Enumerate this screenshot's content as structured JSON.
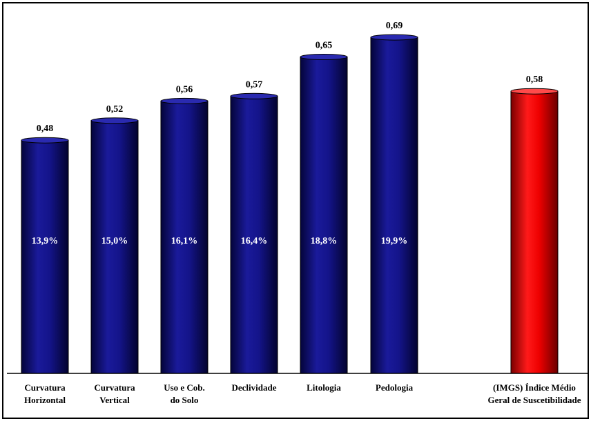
{
  "chart_data": {
    "type": "bar",
    "categories": [
      [
        "Curvatura",
        "Horizontal"
      ],
      [
        "Curvatura",
        "Vertical"
      ],
      [
        "Uso e Cob.",
        "do Solo"
      ],
      [
        "Declividade"
      ],
      [
        "Litologia"
      ],
      [
        "Pedologia"
      ],
      [
        "(IMGS) Índice Médio",
        "Geral de Suscetibilidade"
      ]
    ],
    "values": [
      0.48,
      0.52,
      0.56,
      0.57,
      0.65,
      0.69,
      0.58
    ],
    "value_labels": [
      "0,48",
      "0,52",
      "0,56",
      "0,57",
      "0,65",
      "0,69",
      "0,58"
    ],
    "inner_labels": [
      "13,9%",
      "15,0%",
      "16,1%",
      "16,4%",
      "18,8%",
      "19,9%",
      ""
    ],
    "bar_colors": [
      "#0d0d7a",
      "#0d0d7a",
      "#0d0d7a",
      "#0d0d7a",
      "#0d0d7a",
      "#0d0d7a",
      "#e00000"
    ],
    "title": "",
    "xlabel": "",
    "ylabel": "",
    "ylim": [
      0,
      0.75
    ],
    "grid": false,
    "legend": "none"
  }
}
